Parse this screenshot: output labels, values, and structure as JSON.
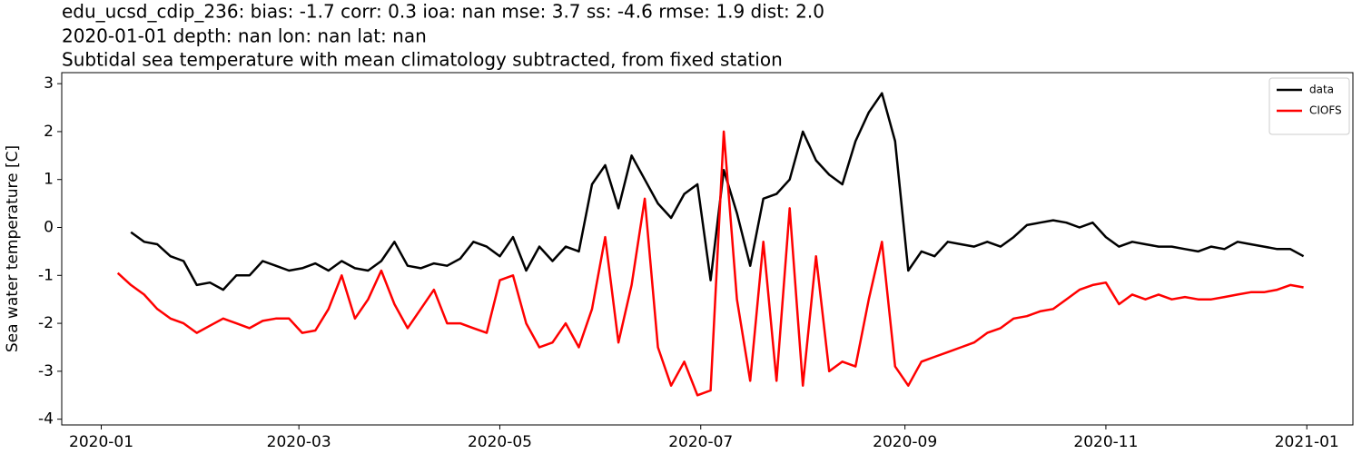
{
  "chart_data": {
    "type": "line",
    "title_lines": [
      "edu_ucsd_cdip_236: bias: -1.7  corr: 0.3  ioa: nan  mse: 3.7  ss: -4.6  rmse: 1.9  dist: 2.0",
      "2020-01-01 depth: nan lon: nan lat: nan",
      "Subtidal sea temperature with mean climatology subtracted, from fixed station"
    ],
    "ylabel": "Sea water temperature [C]",
    "x": [
      5,
      9,
      13,
      17,
      21,
      25,
      29,
      33,
      37,
      41,
      45,
      49,
      53,
      57,
      61,
      65,
      69,
      73,
      77,
      81,
      85,
      89,
      93,
      97,
      101,
      105,
      109,
      113,
      117,
      121,
      125,
      129,
      133,
      137,
      141,
      145,
      149,
      153,
      157,
      161,
      165,
      169,
      173,
      177,
      181,
      185,
      189,
      193,
      197,
      201,
      205,
      209,
      213,
      217,
      221,
      225,
      229,
      233,
      237,
      241,
      245,
      249,
      253,
      257,
      261,
      265,
      269,
      273,
      277,
      281,
      285,
      289,
      293,
      297,
      301,
      305,
      309,
      313,
      317,
      321,
      325,
      329,
      333,
      337,
      341,
      345,
      349,
      353,
      357,
      361,
      365
    ],
    "series": [
      {
        "name": "data",
        "color": "#000000",
        "values": [
          null,
          -0.1,
          -0.3,
          -0.35,
          -0.6,
          -0.7,
          -1.2,
          -1.15,
          -1.3,
          -1.0,
          -1.0,
          -0.7,
          -0.8,
          -0.9,
          -0.85,
          -0.75,
          -0.9,
          -0.7,
          -0.85,
          -0.9,
          -0.7,
          -0.3,
          -0.8,
          -0.85,
          -0.75,
          -0.8,
          -0.65,
          -0.3,
          -0.4,
          -0.6,
          -0.2,
          -0.9,
          -0.4,
          -0.7,
          -0.4,
          -0.5,
          0.9,
          1.3,
          0.4,
          1.5,
          1.0,
          0.5,
          0.2,
          0.7,
          0.9,
          -1.1,
          1.2,
          0.3,
          -0.8,
          0.6,
          0.7,
          1.0,
          2.0,
          1.4,
          1.1,
          0.9,
          1.8,
          2.4,
          2.8,
          1.8,
          -0.9,
          -0.5,
          -0.6,
          -0.3,
          -0.35,
          -0.4,
          -0.3,
          -0.4,
          -0.2,
          0.05,
          0.1,
          0.15,
          0.1,
          0.0,
          0.1,
          -0.2,
          -0.4,
          -0.3,
          -0.35,
          -0.4,
          -0.4,
          -0.45,
          -0.5,
          -0.4,
          -0.45,
          -0.3,
          -0.35,
          -0.4,
          -0.45,
          -0.45,
          -0.6
        ]
      },
      {
        "name": "CIOFS",
        "color": "#ff0000",
        "values": [
          -0.95,
          -1.2,
          -1.4,
          -1.7,
          -1.9,
          -2.0,
          -2.2,
          -2.05,
          -1.9,
          -2.0,
          -2.1,
          -1.95,
          -1.9,
          -1.9,
          -2.2,
          -2.15,
          -1.7,
          -1.0,
          -1.9,
          -1.5,
          -0.9,
          -1.6,
          -2.1,
          -1.7,
          -1.3,
          -2.0,
          -2.0,
          -2.1,
          -2.2,
          -1.1,
          -1.0,
          -2.0,
          -2.5,
          -2.4,
          -2.0,
          -2.5,
          -1.7,
          -0.2,
          -2.4,
          -1.2,
          0.6,
          -2.5,
          -3.3,
          -2.8,
          -3.5,
          -3.4,
          2.0,
          -1.5,
          -3.2,
          -0.3,
          -3.2,
          0.4,
          -3.3,
          -0.6,
          -3.0,
          -2.8,
          -2.9,
          -1.5,
          -0.3,
          -2.9,
          -3.3,
          -2.8,
          -2.7,
          -2.6,
          -2.5,
          -2.4,
          -2.2,
          -2.1,
          -1.9,
          -1.85,
          -1.75,
          -1.7,
          -1.5,
          -1.3,
          -1.2,
          -1.15,
          -1.6,
          -1.4,
          -1.5,
          -1.4,
          -1.5,
          -1.45,
          -1.5,
          -1.5,
          -1.45,
          -1.4,
          -1.35,
          -1.35,
          -1.3,
          -1.2,
          -1.25
        ]
      }
    ],
    "xlim": [
      -12,
      380
    ],
    "xticks": [
      {
        "value": 0,
        "label": "2020-01"
      },
      {
        "value": 60,
        "label": "2020-03"
      },
      {
        "value": 121,
        "label": "2020-05"
      },
      {
        "value": 182,
        "label": "2020-07"
      },
      {
        "value": 244,
        "label": "2020-09"
      },
      {
        "value": 305,
        "label": "2020-11"
      },
      {
        "value": 366,
        "label": "2021-01"
      }
    ],
    "ylim": [
      -4.12,
      3.23
    ],
    "yticks": [
      -4,
      -3,
      -2,
      -1,
      0,
      1,
      2,
      3
    ],
    "grid": false,
    "legend": "upper right"
  }
}
